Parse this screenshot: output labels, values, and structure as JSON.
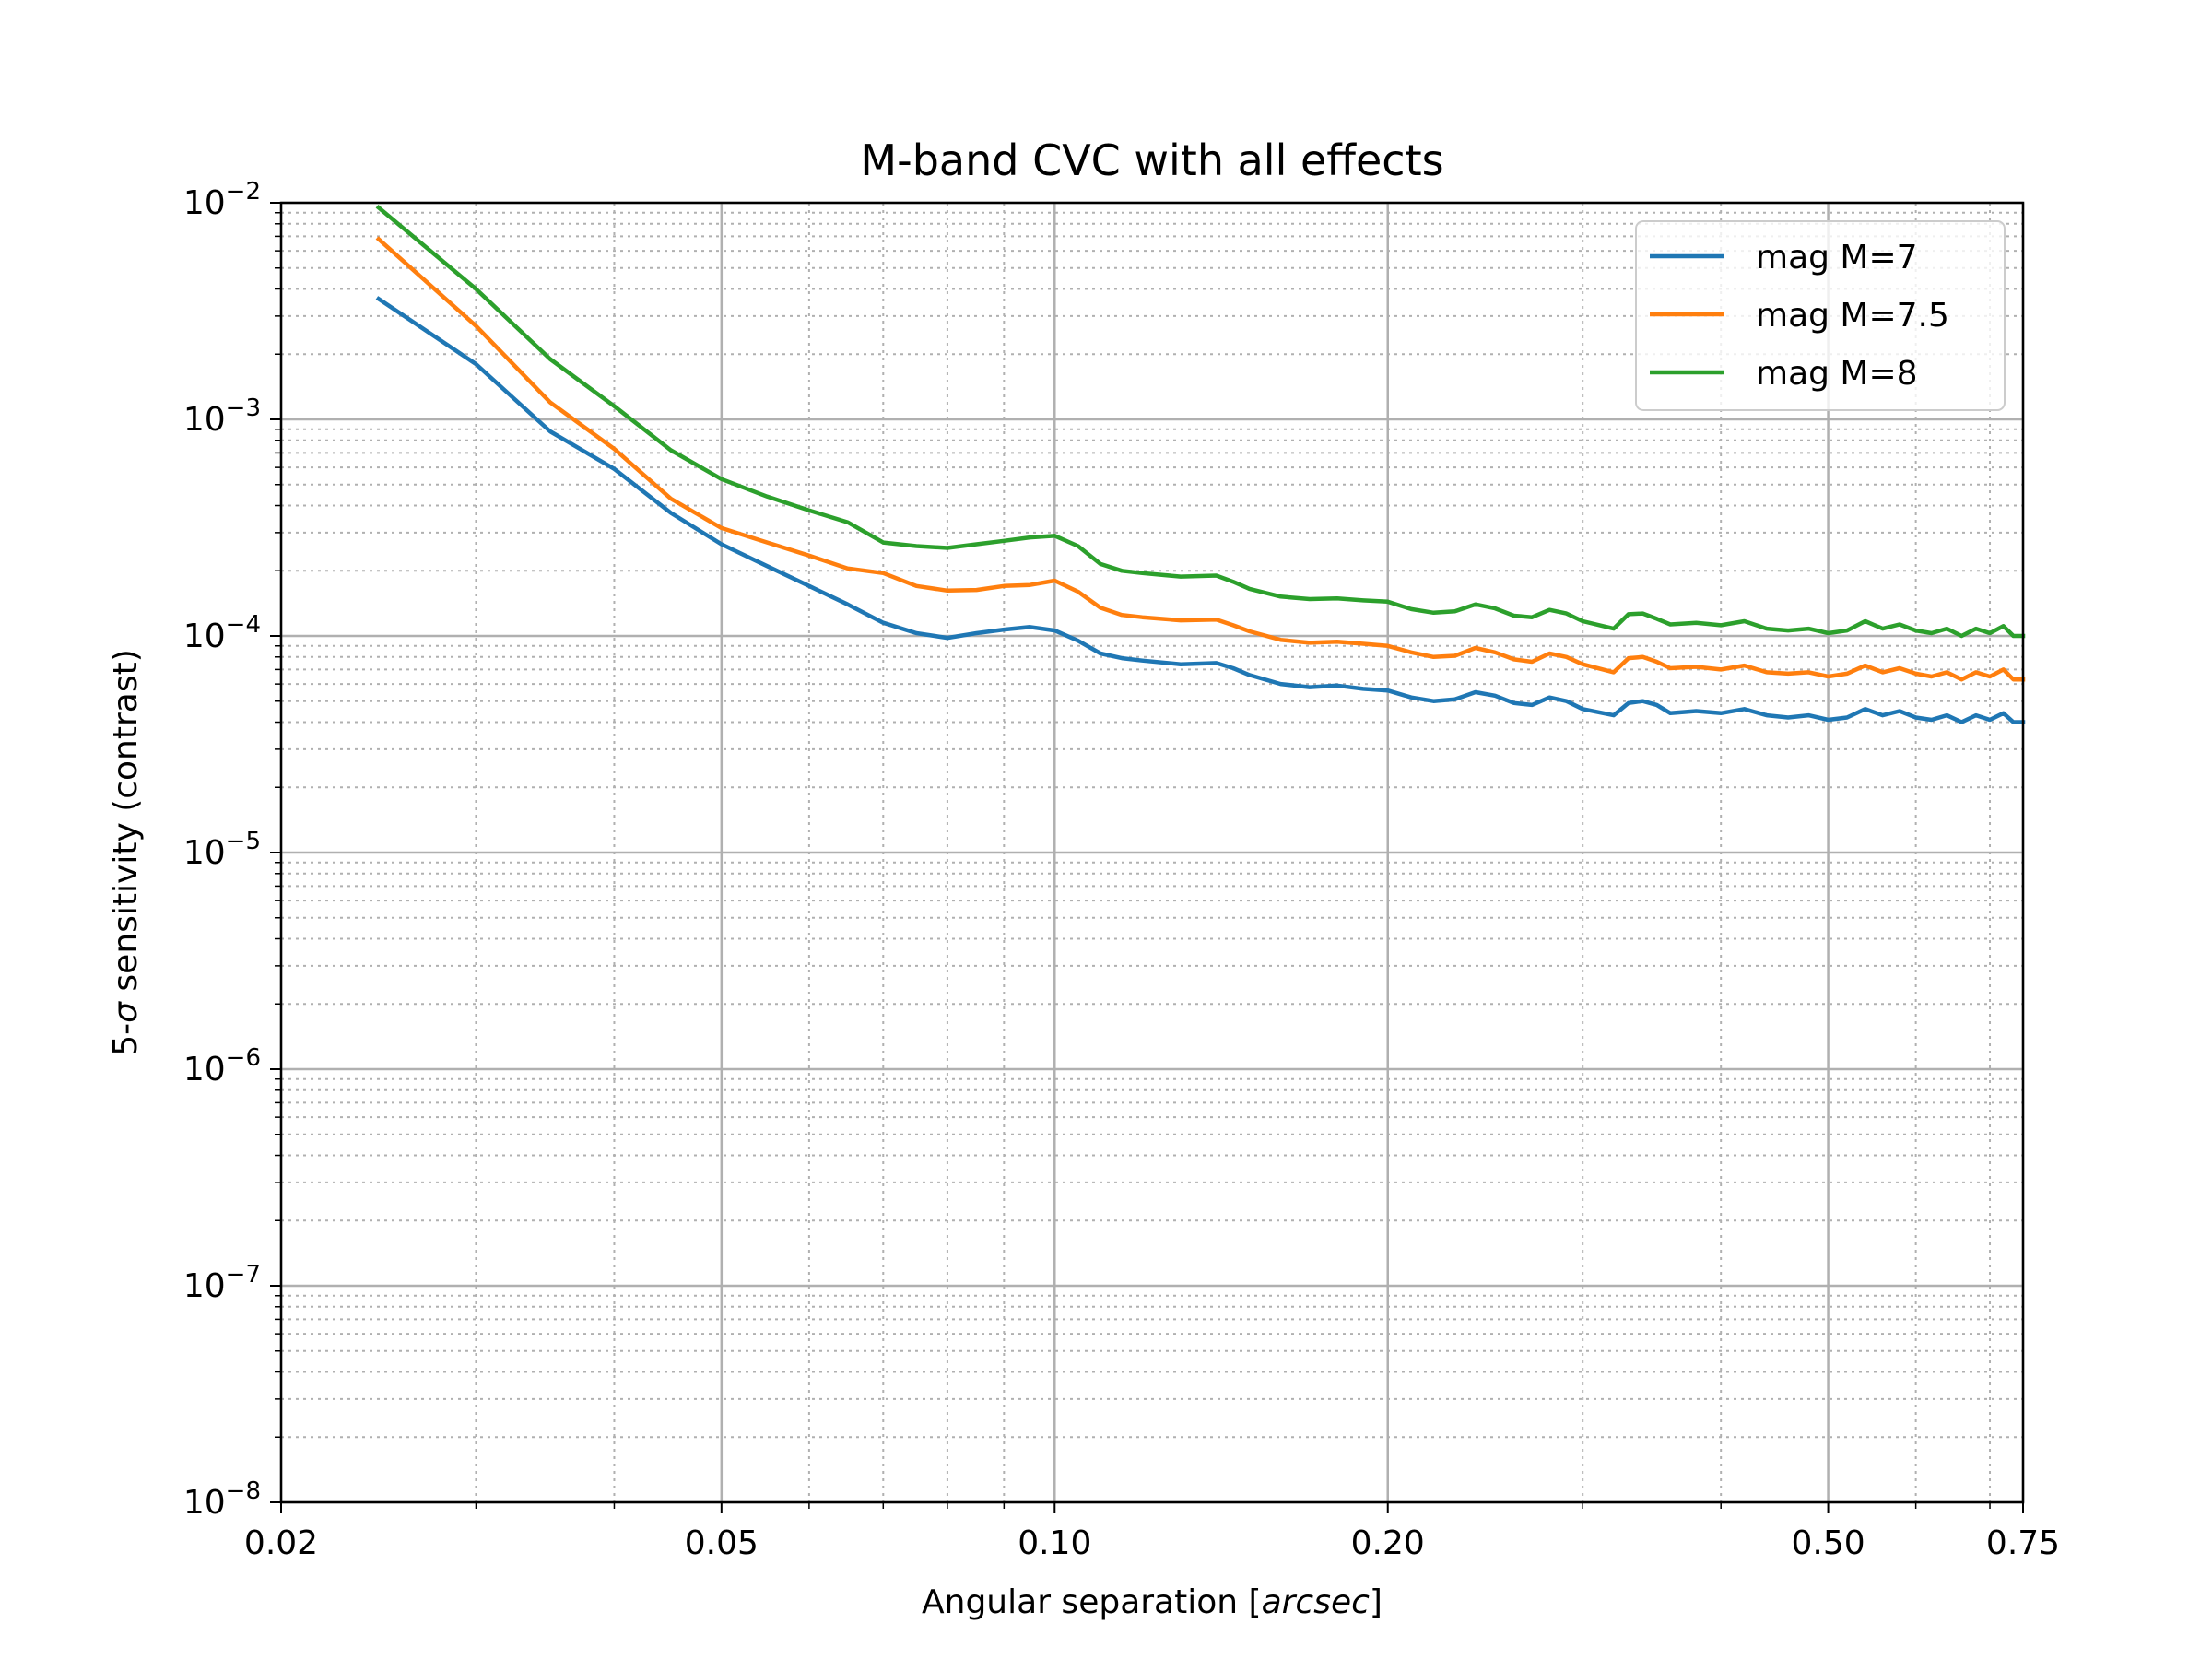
{
  "chart_data": {
    "type": "line",
    "title": "M-band CVC with all effects",
    "xlabel_prefix": "Angular separation [",
    "xlabel_unit": "arcsec",
    "xlabel_suffix": "]",
    "ylabel_prefix": "5-",
    "ylabel_symbol": "σ",
    "ylabel_suffix": " sensitivity (contrast)",
    "x_scale": "log",
    "y_scale": "log",
    "xlim": [
      0.02,
      0.75
    ],
    "ylim": [
      1e-08,
      0.01
    ],
    "x_ticks": [
      0.02,
      0.05,
      0.1,
      0.2,
      0.5,
      0.75
    ],
    "x_tick_labels": [
      "0.02",
      "0.05",
      "0.10",
      "0.20",
      "0.50",
      "0.75"
    ],
    "y_tick_exponents": [
      -8,
      -7,
      -6,
      -5,
      -4,
      -3,
      -2
    ],
    "y_tick_base": "10",
    "y_tick_labels": [
      "−8",
      "−7",
      "−6",
      "−5",
      "−4",
      "−3",
      "−2"
    ],
    "grid": true,
    "legend_position": "top-right",
    "series": [
      {
        "name": "mag M=7",
        "color": "#1f77b4",
        "x": [
          0.0245,
          0.03,
          0.035,
          0.04,
          0.045,
          0.05,
          0.055,
          0.06,
          0.065,
          0.07,
          0.075,
          0.08,
          0.085,
          0.09,
          0.095,
          0.1,
          0.105,
          0.11,
          0.115,
          0.12,
          0.13,
          0.14,
          0.145,
          0.15,
          0.16,
          0.17,
          0.18,
          0.19,
          0.2,
          0.21,
          0.22,
          0.23,
          0.24,
          0.25,
          0.26,
          0.27,
          0.28,
          0.29,
          0.3,
          0.32,
          0.33,
          0.34,
          0.35,
          0.36,
          0.38,
          0.4,
          0.42,
          0.44,
          0.46,
          0.48,
          0.5,
          0.52,
          0.54,
          0.56,
          0.58,
          0.6,
          0.62,
          0.64,
          0.66,
          0.68,
          0.7,
          0.72,
          0.735,
          0.75
        ],
        "y": [
          0.0036,
          0.0018,
          0.00088,
          0.00059,
          0.00037,
          0.000265,
          0.00021,
          0.00017,
          0.00014,
          0.000115,
          0.000103,
          9.8e-05,
          0.000103,
          0.000107,
          0.00011,
          0.000106,
          9.5e-05,
          8.3e-05,
          7.9e-05,
          7.7e-05,
          7.4e-05,
          7.5e-05,
          7.1e-05,
          6.6e-05,
          6e-05,
          5.8e-05,
          5.9e-05,
          5.7e-05,
          5.6e-05,
          5.2e-05,
          5e-05,
          5.1e-05,
          5.5e-05,
          5.3e-05,
          4.9e-05,
          4.8e-05,
          5.2e-05,
          5e-05,
          4.6e-05,
          4.3e-05,
          4.9e-05,
          5e-05,
          4.8e-05,
          4.4e-05,
          4.5e-05,
          4.4e-05,
          4.6e-05,
          4.3e-05,
          4.2e-05,
          4.3e-05,
          4.1e-05,
          4.2e-05,
          4.6e-05,
          4.3e-05,
          4.5e-05,
          4.2e-05,
          4.1e-05,
          4.3e-05,
          4e-05,
          4.3e-05,
          4.1e-05,
          4.4e-05,
          4e-05,
          4e-05
        ]
      },
      {
        "name": "mag M=7.5",
        "color": "#ff7f0e",
        "x": [
          0.0245,
          0.03,
          0.035,
          0.04,
          0.045,
          0.05,
          0.055,
          0.06,
          0.065,
          0.07,
          0.075,
          0.08,
          0.085,
          0.09,
          0.095,
          0.1,
          0.105,
          0.11,
          0.115,
          0.12,
          0.13,
          0.14,
          0.145,
          0.15,
          0.16,
          0.17,
          0.18,
          0.19,
          0.2,
          0.21,
          0.22,
          0.23,
          0.24,
          0.25,
          0.26,
          0.27,
          0.28,
          0.29,
          0.3,
          0.32,
          0.33,
          0.34,
          0.35,
          0.36,
          0.38,
          0.4,
          0.42,
          0.44,
          0.46,
          0.48,
          0.5,
          0.52,
          0.54,
          0.56,
          0.58,
          0.6,
          0.62,
          0.64,
          0.66,
          0.68,
          0.7,
          0.72,
          0.735,
          0.75
        ],
        "y": [
          0.0068,
          0.0027,
          0.0012,
          0.00073,
          0.00043,
          0.000315,
          0.00027,
          0.000235,
          0.000205,
          0.000195,
          0.00017,
          0.000162,
          0.000163,
          0.00017,
          0.000172,
          0.00018,
          0.00016,
          0.000135,
          0.000125,
          0.000122,
          0.000118,
          0.000119,
          0.000112,
          0.000105,
          9.6e-05,
          9.3e-05,
          9.4e-05,
          9.2e-05,
          9e-05,
          8.4e-05,
          8e-05,
          8.1e-05,
          8.8e-05,
          8.4e-05,
          7.8e-05,
          7.6e-05,
          8.3e-05,
          8e-05,
          7.4e-05,
          6.8e-05,
          7.9e-05,
          8e-05,
          7.6e-05,
          7.1e-05,
          7.2e-05,
          7e-05,
          7.3e-05,
          6.8e-05,
          6.7e-05,
          6.8e-05,
          6.5e-05,
          6.7e-05,
          7.3e-05,
          6.8e-05,
          7.1e-05,
          6.7e-05,
          6.5e-05,
          6.8e-05,
          6.3e-05,
          6.8e-05,
          6.5e-05,
          7e-05,
          6.3e-05,
          6.3e-05
        ]
      },
      {
        "name": "mag M=8",
        "color": "#2ca02c",
        "x": [
          0.0245,
          0.03,
          0.035,
          0.04,
          0.045,
          0.05,
          0.055,
          0.06,
          0.065,
          0.07,
          0.075,
          0.08,
          0.085,
          0.09,
          0.095,
          0.1,
          0.105,
          0.11,
          0.115,
          0.12,
          0.13,
          0.14,
          0.145,
          0.15,
          0.16,
          0.17,
          0.18,
          0.19,
          0.2,
          0.21,
          0.22,
          0.23,
          0.24,
          0.25,
          0.26,
          0.27,
          0.28,
          0.29,
          0.3,
          0.32,
          0.33,
          0.34,
          0.35,
          0.36,
          0.38,
          0.4,
          0.42,
          0.44,
          0.46,
          0.48,
          0.5,
          0.52,
          0.54,
          0.56,
          0.58,
          0.6,
          0.62,
          0.64,
          0.66,
          0.68,
          0.7,
          0.72,
          0.735,
          0.75
        ],
        "y": [
          0.0095,
          0.004,
          0.0019,
          0.00115,
          0.00072,
          0.00053,
          0.00044,
          0.00038,
          0.000335,
          0.00027,
          0.00026,
          0.000255,
          0.000265,
          0.000275,
          0.000285,
          0.00029,
          0.00026,
          0.000215,
          0.0002,
          0.000195,
          0.000188,
          0.00019,
          0.000178,
          0.000165,
          0.000152,
          0.000148,
          0.000149,
          0.000146,
          0.000144,
          0.000133,
          0.000128,
          0.00013,
          0.00014,
          0.000134,
          0.000124,
          0.000122,
          0.000132,
          0.000127,
          0.000117,
          0.000108,
          0.000126,
          0.000127,
          0.00012,
          0.000113,
          0.000115,
          0.000112,
          0.000117,
          0.000108,
          0.000106,
          0.000108,
          0.000103,
          0.000106,
          0.000117,
          0.000108,
          0.000113,
          0.000106,
          0.000103,
          0.000108,
          0.0001,
          0.000108,
          0.000103,
          0.000111,
          0.0001,
          0.0001
        ]
      }
    ]
  }
}
